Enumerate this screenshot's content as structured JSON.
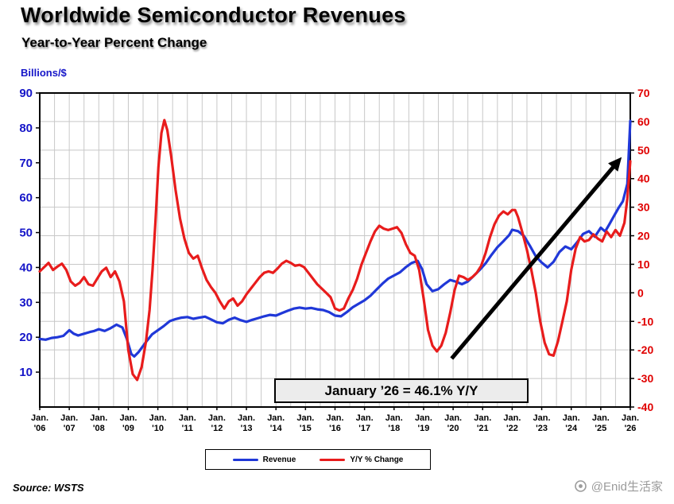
{
  "header": {
    "units_label": "Billions/$"
  },
  "source_text": "Source: WSTS",
  "watermark_text": "@Enid生活家",
  "chart_data": {
    "type": "line",
    "title": "Worldwide Semiconductor Revenues",
    "subtitle": "Year-to-Year Percent Change",
    "grid": true,
    "legend_position": "bottom",
    "x_axis": {
      "min": 2006,
      "max": 2026,
      "ticks": [
        {
          "top": "Jan.",
          "bottom": "'06"
        },
        {
          "top": "Jan.",
          "bottom": "'07"
        },
        {
          "top": "Jan.",
          "bottom": "'08"
        },
        {
          "top": "Jan.",
          "bottom": "'09"
        },
        {
          "top": "Jan.",
          "bottom": "'10"
        },
        {
          "top": "Jan.",
          "bottom": "'11"
        },
        {
          "top": "Jan.",
          "bottom": "'12"
        },
        {
          "top": "Jan.",
          "bottom": "'13"
        },
        {
          "top": "Jan.",
          "bottom": "'14"
        },
        {
          "top": "Jan.",
          "bottom": "'15"
        },
        {
          "top": "Jan.",
          "bottom": "'16"
        },
        {
          "top": "Jan.",
          "bottom": "'17"
        },
        {
          "top": "Jan.",
          "bottom": "'18"
        },
        {
          "top": "Jan.",
          "bottom": "'19"
        },
        {
          "top": "Jan.",
          "bottom": "'20"
        },
        {
          "top": "Jan.",
          "bottom": "'21"
        },
        {
          "top": "Jan.",
          "bottom": "'22"
        },
        {
          "top": "Jan.",
          "bottom": "'23"
        },
        {
          "top": "Jan.",
          "bottom": "'24"
        },
        {
          "top": "Jan.",
          "bottom": "'25"
        },
        {
          "top": "Jan.",
          "bottom": "'26"
        }
      ]
    },
    "left_axis": {
      "label": "Billions/$",
      "min": 0,
      "max": 90,
      "ticks": [
        90,
        80,
        70,
        60,
        50,
        40,
        30,
        20,
        10
      ],
      "color": "#1515c8"
    },
    "right_axis": {
      "label": "Y/Y % Change",
      "min": -40,
      "max": 70,
      "ticks": [
        70,
        60,
        50,
        40,
        30,
        20,
        10,
        0,
        -10,
        -20,
        -30,
        -40
      ],
      "color": "#e00000"
    },
    "series": [
      {
        "name": "Revenue",
        "axis": "left",
        "color": "#2038d8",
        "points": [
          [
            2006.0,
            19.5
          ],
          [
            2006.2,
            19.3
          ],
          [
            2006.4,
            19.8
          ],
          [
            2006.6,
            20.0
          ],
          [
            2006.8,
            20.4
          ],
          [
            2007.0,
            22.0
          ],
          [
            2007.15,
            21.0
          ],
          [
            2007.3,
            20.5
          ],
          [
            2007.5,
            21.0
          ],
          [
            2007.7,
            21.5
          ],
          [
            2007.85,
            21.8
          ],
          [
            2008.0,
            22.3
          ],
          [
            2008.2,
            21.8
          ],
          [
            2008.4,
            22.6
          ],
          [
            2008.6,
            23.6
          ],
          [
            2008.8,
            22.8
          ],
          [
            2008.95,
            19.5
          ],
          [
            2009.1,
            15.2
          ],
          [
            2009.2,
            14.5
          ],
          [
            2009.35,
            15.8
          ],
          [
            2009.5,
            17.5
          ],
          [
            2009.65,
            19.2
          ],
          [
            2009.8,
            20.8
          ],
          [
            2010.0,
            22.0
          ],
          [
            2010.2,
            23.2
          ],
          [
            2010.4,
            24.6
          ],
          [
            2010.6,
            25.2
          ],
          [
            2010.8,
            25.6
          ],
          [
            2011.0,
            25.8
          ],
          [
            2011.2,
            25.3
          ],
          [
            2011.4,
            25.6
          ],
          [
            2011.6,
            25.9
          ],
          [
            2011.8,
            25.1
          ],
          [
            2012.0,
            24.3
          ],
          [
            2012.2,
            24.0
          ],
          [
            2012.4,
            25.0
          ],
          [
            2012.6,
            25.6
          ],
          [
            2012.8,
            24.9
          ],
          [
            2013.0,
            24.4
          ],
          [
            2013.2,
            25.0
          ],
          [
            2013.4,
            25.5
          ],
          [
            2013.6,
            26.0
          ],
          [
            2013.8,
            26.4
          ],
          [
            2014.0,
            26.2
          ],
          [
            2014.2,
            26.9
          ],
          [
            2014.4,
            27.6
          ],
          [
            2014.6,
            28.2
          ],
          [
            2014.8,
            28.5
          ],
          [
            2015.0,
            28.2
          ],
          [
            2015.2,
            28.4
          ],
          [
            2015.4,
            28.0
          ],
          [
            2015.6,
            27.8
          ],
          [
            2015.8,
            27.2
          ],
          [
            2016.0,
            26.2
          ],
          [
            2016.2,
            26.0
          ],
          [
            2016.4,
            27.2
          ],
          [
            2016.6,
            28.6
          ],
          [
            2016.8,
            29.6
          ],
          [
            2017.0,
            30.6
          ],
          [
            2017.2,
            31.9
          ],
          [
            2017.4,
            33.6
          ],
          [
            2017.6,
            35.3
          ],
          [
            2017.8,
            36.8
          ],
          [
            2018.0,
            37.7
          ],
          [
            2018.2,
            38.6
          ],
          [
            2018.4,
            40.1
          ],
          [
            2018.6,
            41.3
          ],
          [
            2018.8,
            41.9
          ],
          [
            2018.95,
            39.5
          ],
          [
            2019.1,
            35.2
          ],
          [
            2019.3,
            33.2
          ],
          [
            2019.5,
            33.8
          ],
          [
            2019.7,
            35.2
          ],
          [
            2019.9,
            36.4
          ],
          [
            2020.1,
            35.9
          ],
          [
            2020.3,
            35.2
          ],
          [
            2020.5,
            36.0
          ],
          [
            2020.7,
            37.6
          ],
          [
            2020.9,
            39.3
          ],
          [
            2021.1,
            41.2
          ],
          [
            2021.3,
            43.6
          ],
          [
            2021.5,
            45.8
          ],
          [
            2021.7,
            47.5
          ],
          [
            2021.9,
            49.3
          ],
          [
            2022.0,
            50.8
          ],
          [
            2022.2,
            50.4
          ],
          [
            2022.4,
            49.0
          ],
          [
            2022.6,
            46.2
          ],
          [
            2022.8,
            43.2
          ],
          [
            2023.0,
            41.4
          ],
          [
            2023.2,
            40.0
          ],
          [
            2023.4,
            41.6
          ],
          [
            2023.6,
            44.4
          ],
          [
            2023.8,
            46.0
          ],
          [
            2024.0,
            45.2
          ],
          [
            2024.2,
            47.2
          ],
          [
            2024.4,
            49.6
          ],
          [
            2024.6,
            50.4
          ],
          [
            2024.8,
            48.8
          ],
          [
            2025.0,
            51.4
          ],
          [
            2025.15,
            50.3
          ],
          [
            2025.3,
            52.5
          ],
          [
            2025.45,
            54.8
          ],
          [
            2025.6,
            57.0
          ],
          [
            2025.75,
            59.0
          ],
          [
            2025.9,
            64.0
          ],
          [
            2026.0,
            82.0
          ]
        ]
      },
      {
        "name": "Y/Y % Change",
        "axis": "right",
        "color": "#e81c1c",
        "points": [
          [
            2006.0,
            7.5
          ],
          [
            2006.15,
            9.0
          ],
          [
            2006.3,
            10.5
          ],
          [
            2006.45,
            8.0
          ],
          [
            2006.6,
            9.2
          ],
          [
            2006.75,
            10.2
          ],
          [
            2006.9,
            8.0
          ],
          [
            2007.05,
            4.0
          ],
          [
            2007.2,
            2.5
          ],
          [
            2007.35,
            3.5
          ],
          [
            2007.5,
            5.5
          ],
          [
            2007.65,
            3.0
          ],
          [
            2007.8,
            2.5
          ],
          [
            2007.95,
            5.0
          ],
          [
            2008.1,
            7.5
          ],
          [
            2008.25,
            8.8
          ],
          [
            2008.4,
            5.5
          ],
          [
            2008.55,
            7.5
          ],
          [
            2008.7,
            4.0
          ],
          [
            2008.85,
            -3.0
          ],
          [
            2009.0,
            -20.0
          ],
          [
            2009.15,
            -28.5
          ],
          [
            2009.3,
            -30.5
          ],
          [
            2009.45,
            -26.0
          ],
          [
            2009.6,
            -17.0
          ],
          [
            2009.72,
            -6.0
          ],
          [
            2009.82,
            8.0
          ],
          [
            2009.92,
            25.0
          ],
          [
            2010.02,
            44.0
          ],
          [
            2010.12,
            56.0
          ],
          [
            2010.22,
            60.5
          ],
          [
            2010.32,
            57.0
          ],
          [
            2010.45,
            48.0
          ],
          [
            2010.6,
            36.0
          ],
          [
            2010.75,
            26.0
          ],
          [
            2010.9,
            19.0
          ],
          [
            2011.05,
            14.0
          ],
          [
            2011.2,
            12.0
          ],
          [
            2011.35,
            13.0
          ],
          [
            2011.5,
            8.5
          ],
          [
            2011.65,
            4.5
          ],
          [
            2011.8,
            2.0
          ],
          [
            2011.95,
            0.0
          ],
          [
            2012.1,
            -3.0
          ],
          [
            2012.25,
            -5.5
          ],
          [
            2012.4,
            -3.0
          ],
          [
            2012.55,
            -2.0
          ],
          [
            2012.7,
            -4.5
          ],
          [
            2012.85,
            -3.0
          ],
          [
            2013.0,
            -0.5
          ],
          [
            2013.15,
            1.5
          ],
          [
            2013.3,
            3.5
          ],
          [
            2013.45,
            5.5
          ],
          [
            2013.6,
            7.0
          ],
          [
            2013.75,
            7.5
          ],
          [
            2013.9,
            7.0
          ],
          [
            2014.05,
            8.5
          ],
          [
            2014.2,
            10.2
          ],
          [
            2014.35,
            11.2
          ],
          [
            2014.5,
            10.5
          ],
          [
            2014.65,
            9.5
          ],
          [
            2014.8,
            9.8
          ],
          [
            2014.95,
            9.0
          ],
          [
            2015.1,
            7.0
          ],
          [
            2015.25,
            5.0
          ],
          [
            2015.4,
            3.0
          ],
          [
            2015.55,
            1.5
          ],
          [
            2015.7,
            0.0
          ],
          [
            2015.85,
            -1.5
          ],
          [
            2016.0,
            -5.5
          ],
          [
            2016.15,
            -6.2
          ],
          [
            2016.3,
            -5.5
          ],
          [
            2016.45,
            -2.0
          ],
          [
            2016.6,
            1.0
          ],
          [
            2016.75,
            5.0
          ],
          [
            2016.9,
            10.0
          ],
          [
            2017.05,
            14.0
          ],
          [
            2017.2,
            18.0
          ],
          [
            2017.35,
            21.5
          ],
          [
            2017.5,
            23.5
          ],
          [
            2017.65,
            22.5
          ],
          [
            2017.8,
            22.0
          ],
          [
            2017.95,
            22.5
          ],
          [
            2018.1,
            23.0
          ],
          [
            2018.25,
            21.0
          ],
          [
            2018.4,
            17.0
          ],
          [
            2018.55,
            14.0
          ],
          [
            2018.7,
            13.0
          ],
          [
            2018.85,
            8.0
          ],
          [
            2019.0,
            -2.0
          ],
          [
            2019.15,
            -13.0
          ],
          [
            2019.3,
            -18.5
          ],
          [
            2019.45,
            -20.5
          ],
          [
            2019.6,
            -18.5
          ],
          [
            2019.75,
            -14.0
          ],
          [
            2019.9,
            -7.0
          ],
          [
            2020.05,
            1.0
          ],
          [
            2020.2,
            6.0
          ],
          [
            2020.35,
            5.5
          ],
          [
            2020.5,
            4.5
          ],
          [
            2020.65,
            5.5
          ],
          [
            2020.8,
            7.0
          ],
          [
            2020.95,
            9.5
          ],
          [
            2021.1,
            14.0
          ],
          [
            2021.25,
            19.5
          ],
          [
            2021.4,
            24.0
          ],
          [
            2021.55,
            27.0
          ],
          [
            2021.7,
            28.5
          ],
          [
            2021.85,
            27.5
          ],
          [
            2022.0,
            29.0
          ],
          [
            2022.1,
            29.0
          ],
          [
            2022.2,
            26.5
          ],
          [
            2022.35,
            21.0
          ],
          [
            2022.5,
            15.0
          ],
          [
            2022.65,
            8.0
          ],
          [
            2022.8,
            0.0
          ],
          [
            2022.95,
            -10.0
          ],
          [
            2023.1,
            -17.5
          ],
          [
            2023.25,
            -21.5
          ],
          [
            2023.4,
            -22.0
          ],
          [
            2023.55,
            -17.0
          ],
          [
            2023.7,
            -10.0
          ],
          [
            2023.85,
            -3.0
          ],
          [
            2024.0,
            8.0
          ],
          [
            2024.15,
            15.5
          ],
          [
            2024.3,
            19.5
          ],
          [
            2024.45,
            18.0
          ],
          [
            2024.6,
            18.5
          ],
          [
            2024.75,
            20.5
          ],
          [
            2024.9,
            19.0
          ],
          [
            2025.05,
            18.0
          ],
          [
            2025.2,
            21.5
          ],
          [
            2025.35,
            19.5
          ],
          [
            2025.5,
            22.0
          ],
          [
            2025.65,
            20.0
          ],
          [
            2025.8,
            24.5
          ],
          [
            2025.9,
            33.0
          ],
          [
            2026.0,
            46.1
          ]
        ]
      }
    ],
    "annotation": {
      "text": "January ’26 = 46.1% Y/Y"
    },
    "arrow": {
      "axis": "right",
      "x1": 2019.95,
      "y1": -23,
      "x2": 2025.5,
      "y2": 45
    },
    "grid_color": "#c8c8c8"
  }
}
